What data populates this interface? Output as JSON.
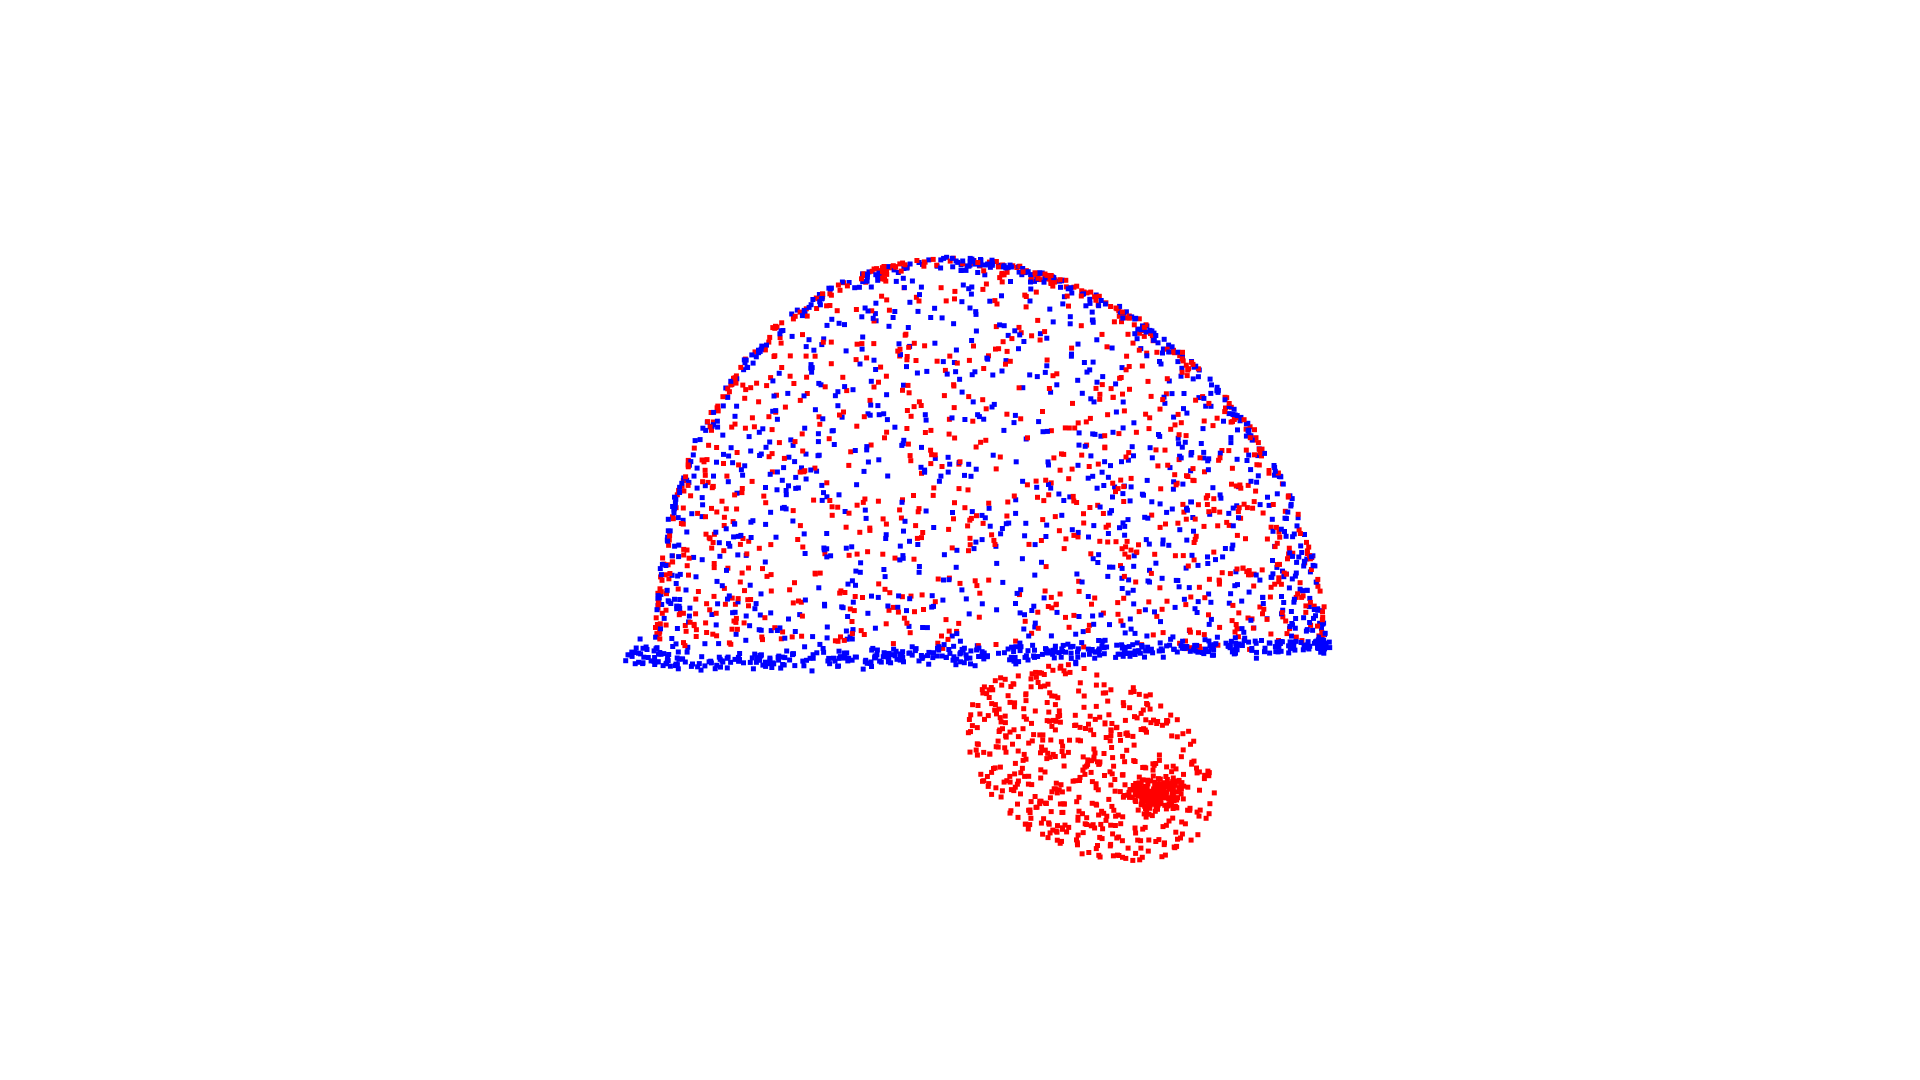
{
  "point_cloud": {
    "colors": [
      "#ff0000",
      "#0000ff"
    ],
    "background": "#ffffff"
  }
}
